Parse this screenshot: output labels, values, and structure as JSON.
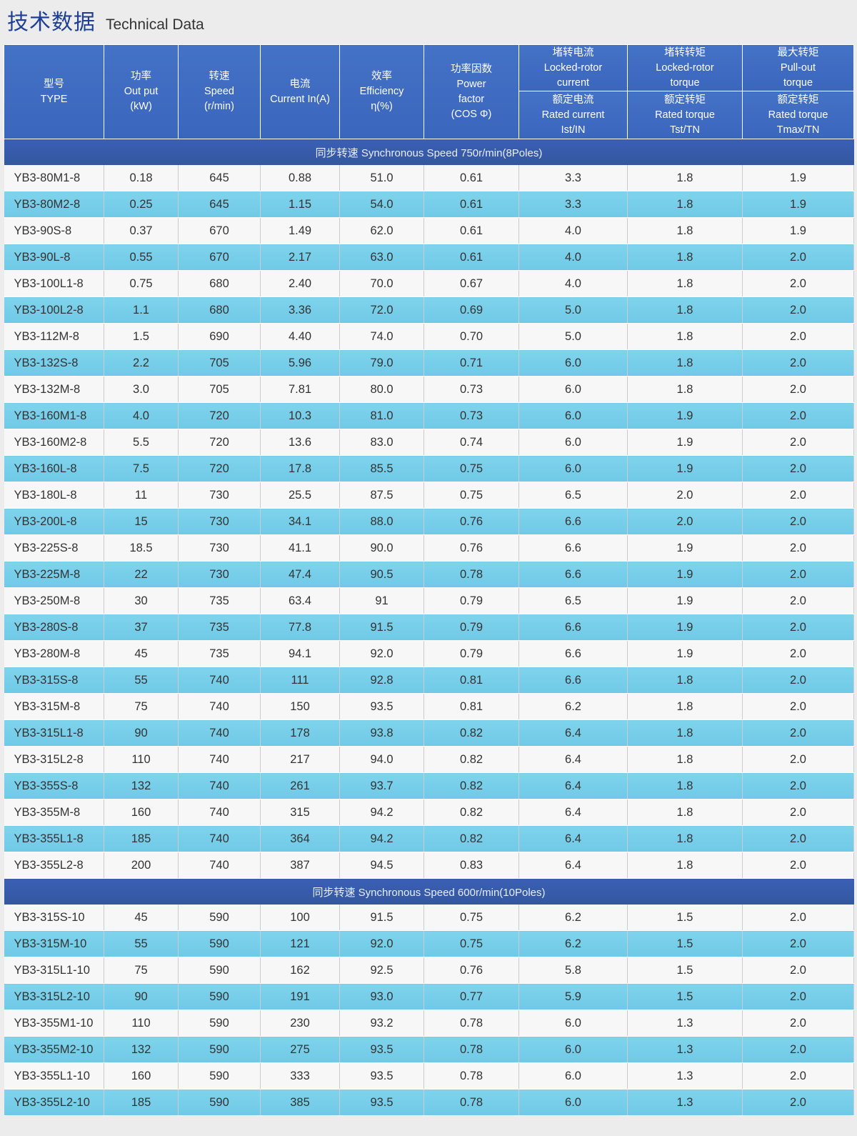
{
  "title": {
    "cn": "技术数据",
    "en": "Technical Data"
  },
  "headers": {
    "type": [
      "型号",
      "TYPE"
    ],
    "output": [
      "功率",
      "Out  put",
      "(kW)"
    ],
    "speed": [
      "转速",
      "Speed",
      "(r/min)"
    ],
    "current": [
      "电流",
      "Current In(A)"
    ],
    "efficiency": [
      "效率",
      "Efficiency",
      "η(%)"
    ],
    "power_factor": [
      "功率因数",
      "Power",
      "factor",
      "(COS Φ)"
    ],
    "locked_current_top": [
      "堵转电流",
      "Locked-rotor",
      "current"
    ],
    "locked_current_bottom": [
      "额定电流",
      "Rated current",
      "Ist/IN"
    ],
    "locked_torque_top": [
      "堵转转矩",
      "Locked-rotor",
      "torque"
    ],
    "locked_torque_bottom": [
      "额定转矩",
      "Rated torque",
      "Tst/TN"
    ],
    "pullout_top": [
      "最大转矩",
      "Pull-out",
      "torque"
    ],
    "pullout_bottom": [
      "额定转矩",
      "Rated torque",
      "Tmax/TN"
    ]
  },
  "sections": [
    {
      "label": "同步转速 Synchronous Speed 750r/min(8Poles)",
      "rows": [
        [
          "YB3-80M1-8",
          "0.18",
          "645",
          "0.88",
          "51.0",
          "0.61",
          "3.3",
          "1.8",
          "1.9"
        ],
        [
          "YB3-80M2-8",
          "0.25",
          "645",
          "1.15",
          "54.0",
          "0.61",
          "3.3",
          "1.8",
          "1.9"
        ],
        [
          "YB3-90S-8",
          "0.37",
          "670",
          "1.49",
          "62.0",
          "0.61",
          "4.0",
          "1.8",
          "1.9"
        ],
        [
          "YB3-90L-8",
          "0.55",
          "670",
          "2.17",
          "63.0",
          "0.61",
          "4.0",
          "1.8",
          "2.0"
        ],
        [
          "YB3-100L1-8",
          "0.75",
          "680",
          "2.40",
          "70.0",
          "0.67",
          "4.0",
          "1.8",
          "2.0"
        ],
        [
          "YB3-100L2-8",
          "1.1",
          "680",
          "3.36",
          "72.0",
          "0.69",
          "5.0",
          "1.8",
          "2.0"
        ],
        [
          "YB3-112M-8",
          "1.5",
          "690",
          "4.40",
          "74.0",
          "0.70",
          "5.0",
          "1.8",
          "2.0"
        ],
        [
          "YB3-132S-8",
          "2.2",
          "705",
          "5.96",
          "79.0",
          "0.71",
          "6.0",
          "1.8",
          "2.0"
        ],
        [
          "YB3-132M-8",
          "3.0",
          "705",
          "7.81",
          "80.0",
          "0.73",
          "6.0",
          "1.8",
          "2.0"
        ],
        [
          "YB3-160M1-8",
          "4.0",
          "720",
          "10.3",
          "81.0",
          "0.73",
          "6.0",
          "1.9",
          "2.0"
        ],
        [
          "YB3-160M2-8",
          "5.5",
          "720",
          "13.6",
          "83.0",
          "0.74",
          "6.0",
          "1.9",
          "2.0"
        ],
        [
          "YB3-160L-8",
          "7.5",
          "720",
          "17.8",
          "85.5",
          "0.75",
          "6.0",
          "1.9",
          "2.0"
        ],
        [
          "YB3-180L-8",
          "11",
          "730",
          "25.5",
          "87.5",
          "0.75",
          "6.5",
          "2.0",
          "2.0"
        ],
        [
          "YB3-200L-8",
          "15",
          "730",
          "34.1",
          "88.0",
          "0.76",
          "6.6",
          "2.0",
          "2.0"
        ],
        [
          "YB3-225S-8",
          "18.5",
          "730",
          "41.1",
          "90.0",
          "0.76",
          "6.6",
          "1.9",
          "2.0"
        ],
        [
          "YB3-225M-8",
          "22",
          "730",
          "47.4",
          "90.5",
          "0.78",
          "6.6",
          "1.9",
          "2.0"
        ],
        [
          "YB3-250M-8",
          "30",
          "735",
          "63.4",
          "91",
          "0.79",
          "6.5",
          "1.9",
          "2.0"
        ],
        [
          "YB3-280S-8",
          "37",
          "735",
          "77.8",
          "91.5",
          "0.79",
          "6.6",
          "1.9",
          "2.0"
        ],
        [
          "YB3-280M-8",
          "45",
          "735",
          "94.1",
          "92.0",
          "0.79",
          "6.6",
          "1.9",
          "2.0"
        ],
        [
          "YB3-315S-8",
          "55",
          "740",
          "111",
          "92.8",
          "0.81",
          "6.6",
          "1.8",
          "2.0"
        ],
        [
          "YB3-315M-8",
          "75",
          "740",
          "150",
          "93.5",
          "0.81",
          "6.2",
          "1.8",
          "2.0"
        ],
        [
          "YB3-315L1-8",
          "90",
          "740",
          "178",
          "93.8",
          "0.82",
          "6.4",
          "1.8",
          "2.0"
        ],
        [
          "YB3-315L2-8",
          "110",
          "740",
          "217",
          "94.0",
          "0.82",
          "6.4",
          "1.8",
          "2.0"
        ],
        [
          "YB3-355S-8",
          "132",
          "740",
          "261",
          "93.7",
          "0.82",
          "6.4",
          "1.8",
          "2.0"
        ],
        [
          "YB3-355M-8",
          "160",
          "740",
          "315",
          "94.2",
          "0.82",
          "6.4",
          "1.8",
          "2.0"
        ],
        [
          "YB3-355L1-8",
          "185",
          "740",
          "364",
          "94.2",
          "0.82",
          "6.4",
          "1.8",
          "2.0"
        ],
        [
          "YB3-355L2-8",
          "200",
          "740",
          "387",
          "94.5",
          "0.83",
          "6.4",
          "1.8",
          "2.0"
        ]
      ]
    },
    {
      "label": "同步转速 Synchronous Speed 600r/min(10Poles)",
      "rows": [
        [
          "YB3-315S-10",
          "45",
          "590",
          "100",
          "91.5",
          "0.75",
          "6.2",
          "1.5",
          "2.0"
        ],
        [
          "YB3-315M-10",
          "55",
          "590",
          "121",
          "92.0",
          "0.75",
          "6.2",
          "1.5",
          "2.0"
        ],
        [
          "YB3-315L1-10",
          "75",
          "590",
          "162",
          "92.5",
          "0.76",
          "5.8",
          "1.5",
          "2.0"
        ],
        [
          "YB3-315L2-10",
          "90",
          "590",
          "191",
          "93.0",
          "0.77",
          "5.9",
          "1.5",
          "2.0"
        ],
        [
          "YB3-355M1-10",
          "110",
          "590",
          "230",
          "93.2",
          "0.78",
          "6.0",
          "1.3",
          "2.0"
        ],
        [
          "YB3-355M2-10",
          "132",
          "590",
          "275",
          "93.5",
          "0.78",
          "6.0",
          "1.3",
          "2.0"
        ],
        [
          "YB3-355L1-10",
          "160",
          "590",
          "333",
          "93.5",
          "0.78",
          "6.0",
          "1.3",
          "2.0"
        ],
        [
          "YB3-355L2-10",
          "185",
          "590",
          "385",
          "93.5",
          "0.78",
          "6.0",
          "1.3",
          "2.0"
        ]
      ]
    }
  ]
}
